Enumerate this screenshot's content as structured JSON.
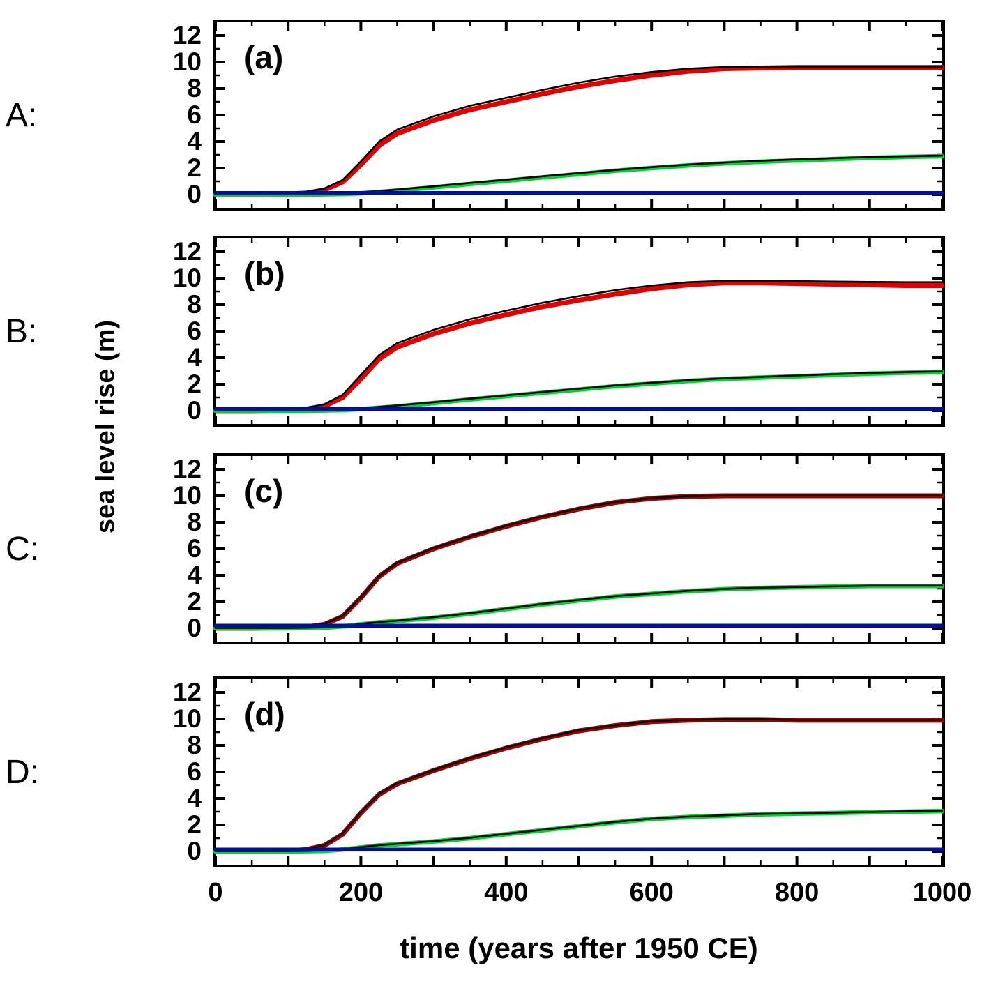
{
  "chart_data": {
    "type": "line",
    "xlabel": "time (years after 1950 CE)",
    "ylabel": "sea level rise (m)",
    "xlim": [
      0,
      1000
    ],
    "ylim": [
      -1,
      13
    ],
    "xticks_labeled": [
      "0",
      "200",
      "400",
      "600",
      "800",
      "1000"
    ],
    "xtick_values": [
      0,
      200,
      400,
      600,
      800,
      1000
    ],
    "xticks_major_step": 100,
    "xticks_minor_step": 50,
    "yticks_labeled": [
      "0",
      "2",
      "4",
      "6",
      "8",
      "10",
      "12"
    ],
    "ytick_values": [
      0,
      2,
      4,
      6,
      8,
      10,
      12
    ],
    "yticks_minor_step": 1,
    "grid": false,
    "legend": "none",
    "x": [
      0,
      50,
      100,
      125,
      150,
      175,
      200,
      225,
      250,
      300,
      350,
      400,
      450,
      500,
      550,
      600,
      650,
      700,
      750,
      800,
      850,
      900,
      950,
      1000
    ],
    "panels": [
      {
        "id": "a",
        "row_label": "A:",
        "label": "(a)",
        "series": [
          {
            "name": "total-red-curve",
            "color": "#e00000",
            "width": 7,
            "y": [
              0,
              0,
              0.05,
              0.12,
              0.35,
              0.95,
              2.25,
              3.7,
              4.6,
              5.6,
              6.4,
              7.0,
              7.6,
              8.15,
              8.6,
              9.0,
              9.3,
              9.5,
              9.55,
              9.6,
              9.6,
              9.6,
              9.6,
              9.6
            ]
          },
          {
            "name": "red-outline-black",
            "color": "#000000",
            "width": 2.6,
            "y": [
              0.05,
              0.05,
              0.1,
              0.2,
              0.45,
              1.1,
              2.5,
              4.0,
              4.9,
              5.9,
              6.7,
              7.3,
              7.9,
              8.45,
              8.9,
              9.25,
              9.5,
              9.63,
              9.65,
              9.65,
              9.65,
              9.65,
              9.65,
              9.65
            ]
          },
          {
            "name": "mid-green-curve",
            "color": "#00d230",
            "width": 6.5,
            "y": [
              0,
              0,
              0,
              0,
              0.02,
              0.05,
              0.1,
              0.2,
              0.3,
              0.55,
              0.8,
              1.05,
              1.3,
              1.55,
              1.8,
              2.0,
              2.2,
              2.35,
              2.48,
              2.58,
              2.68,
              2.77,
              2.84,
              2.9
            ]
          },
          {
            "name": "green-outline-black",
            "color": "#000000",
            "width": 2.6,
            "y": [
              0.02,
              0.02,
              0.02,
              0.03,
              0.05,
              0.1,
              0.17,
              0.27,
              0.38,
              0.62,
              0.88,
              1.12,
              1.38,
              1.62,
              1.86,
              2.07,
              2.26,
              2.41,
              2.55,
              2.65,
              2.75,
              2.83,
              2.89,
              2.94
            ]
          },
          {
            "name": "low-blue-curve",
            "color": "#001099",
            "width": 5.5,
            "y": [
              0.12,
              0.12,
              0.12,
              0.12,
              0.12,
              0.12,
              0.12,
              0.12,
              0.12,
              0.12,
              0.12,
              0.12,
              0.12,
              0.12,
              0.12,
              0.12,
              0.12,
              0.12,
              0.12,
              0.12,
              0.12,
              0.12,
              0.12,
              0.12
            ]
          }
        ]
      },
      {
        "id": "b",
        "row_label": "B:",
        "label": "(b)",
        "series": [
          {
            "name": "total-red-curve",
            "color": "#e00000",
            "width": 7,
            "y": [
              0,
              0,
              0.05,
              0.12,
              0.35,
              1.0,
              2.4,
              3.9,
              4.8,
              5.8,
              6.6,
              7.25,
              7.85,
              8.35,
              8.8,
              9.2,
              9.5,
              9.65,
              9.65,
              9.6,
              9.55,
              9.5,
              9.45,
              9.45
            ]
          },
          {
            "name": "red-outline-black",
            "color": "#000000",
            "width": 2.6,
            "y": [
              0.05,
              0.05,
              0.1,
              0.22,
              0.5,
              1.2,
              2.7,
              4.2,
              5.1,
              6.1,
              6.9,
              7.55,
              8.15,
              8.65,
              9.1,
              9.45,
              9.7,
              9.8,
              9.8,
              9.78,
              9.75,
              9.72,
              9.7,
              9.7
            ]
          },
          {
            "name": "mid-green-curve",
            "color": "#00d230",
            "width": 6.5,
            "y": [
              0,
              0,
              0,
              0,
              0.02,
              0.06,
              0.12,
              0.22,
              0.33,
              0.58,
              0.85,
              1.1,
              1.35,
              1.6,
              1.85,
              2.05,
              2.25,
              2.4,
              2.5,
              2.6,
              2.7,
              2.8,
              2.87,
              2.93
            ]
          },
          {
            "name": "green-outline-black",
            "color": "#000000",
            "width": 2.6,
            "y": [
              0.02,
              0.02,
              0.02,
              0.03,
              0.06,
              0.11,
              0.18,
              0.29,
              0.4,
              0.64,
              0.91,
              1.16,
              1.41,
              1.66,
              1.91,
              2.11,
              2.3,
              2.45,
              2.56,
              2.66,
              2.76,
              2.85,
              2.92,
              2.97
            ]
          },
          {
            "name": "low-blue-curve",
            "color": "#001099",
            "width": 5.5,
            "y": [
              0.12,
              0.12,
              0.12,
              0.12,
              0.12,
              0.12,
              0.12,
              0.12,
              0.12,
              0.12,
              0.12,
              0.12,
              0.12,
              0.12,
              0.12,
              0.12,
              0.12,
              0.12,
              0.12,
              0.12,
              0.12,
              0.12,
              0.12,
              0.12
            ]
          }
        ]
      },
      {
        "id": "c",
        "row_label": "C:",
        "label": "(c)",
        "series": [
          {
            "name": "total-red-curve",
            "color": "#a00000",
            "width": 7,
            "y": [
              0,
              0,
              0.05,
              0.1,
              0.3,
              0.9,
              2.3,
              3.9,
              4.9,
              6.0,
              6.9,
              7.7,
              8.4,
              9.0,
              9.5,
              9.8,
              9.95,
              10.0,
              10.0,
              10.0,
              10.0,
              10.0,
              10.0,
              10.0
            ]
          },
          {
            "name": "red-outline-black",
            "color": "#000000",
            "width": 2.6,
            "y": [
              0.03,
              0.03,
              0.08,
              0.15,
              0.35,
              0.95,
              2.35,
              3.95,
              4.95,
              6.05,
              6.95,
              7.75,
              8.45,
              9.05,
              9.53,
              9.83,
              9.97,
              10.02,
              10.02,
              10.02,
              10.02,
              10.02,
              10.02,
              10.02
            ]
          },
          {
            "name": "mid-green-curve",
            "color": "#00d230",
            "width": 6.5,
            "y": [
              0,
              0,
              0,
              0.02,
              0.05,
              0.15,
              0.3,
              0.45,
              0.55,
              0.8,
              1.1,
              1.45,
              1.8,
              2.1,
              2.4,
              2.6,
              2.8,
              2.95,
              3.05,
              3.1,
              3.15,
              3.2,
              3.2,
              3.2
            ]
          },
          {
            "name": "green-outline-black",
            "color": "#000000",
            "width": 2.6,
            "y": [
              0.02,
              0.02,
              0.02,
              0.04,
              0.08,
              0.18,
              0.33,
              0.48,
              0.58,
              0.84,
              1.14,
              1.49,
              1.84,
              2.14,
              2.43,
              2.63,
              2.83,
              2.98,
              3.07,
              3.12,
              3.17,
              3.22,
              3.22,
              3.22
            ]
          },
          {
            "name": "low-blue-curve",
            "color": "#001099",
            "width": 5.5,
            "y": [
              0.2,
              0.2,
              0.2,
              0.2,
              0.2,
              0.2,
              0.2,
              0.2,
              0.2,
              0.2,
              0.2,
              0.2,
              0.2,
              0.2,
              0.2,
              0.2,
              0.2,
              0.2,
              0.2,
              0.2,
              0.2,
              0.2,
              0.2,
              0.2
            ]
          }
        ]
      },
      {
        "id": "d",
        "row_label": "D:",
        "label": "(d)",
        "series": [
          {
            "name": "total-red-curve",
            "color": "#a00000",
            "width": 7,
            "y": [
              0,
              0,
              0.05,
              0.15,
              0.45,
              1.3,
              2.9,
              4.3,
              5.1,
              6.1,
              7.0,
              7.8,
              8.5,
              9.1,
              9.5,
              9.8,
              9.9,
              9.95,
              9.95,
              9.9,
              9.9,
              9.9,
              9.9,
              9.9
            ]
          },
          {
            "name": "red-outline-black",
            "color": "#000000",
            "width": 2.6,
            "y": [
              0.03,
              0.03,
              0.08,
              0.18,
              0.5,
              1.35,
              2.95,
              4.35,
              5.15,
              6.15,
              7.05,
              7.85,
              8.55,
              9.15,
              9.53,
              9.83,
              9.93,
              9.98,
              9.98,
              9.93,
              9.93,
              9.93,
              9.93,
              9.93
            ]
          },
          {
            "name": "mid-green-curve",
            "color": "#00d230",
            "width": 6.5,
            "y": [
              0,
              0,
              0,
              0.02,
              0.05,
              0.15,
              0.3,
              0.45,
              0.55,
              0.75,
              1.0,
              1.3,
              1.6,
              1.9,
              2.2,
              2.45,
              2.6,
              2.7,
              2.8,
              2.85,
              2.9,
              2.95,
              3.0,
              3.05
            ]
          },
          {
            "name": "green-outline-black",
            "color": "#000000",
            "width": 2.6,
            "y": [
              0.02,
              0.02,
              0.02,
              0.04,
              0.08,
              0.18,
              0.33,
              0.48,
              0.58,
              0.78,
              1.03,
              1.33,
              1.63,
              1.93,
              2.23,
              2.48,
              2.63,
              2.73,
              2.83,
              2.88,
              2.93,
              2.98,
              3.03,
              3.08
            ]
          },
          {
            "name": "low-blue-curve",
            "color": "#001099",
            "width": 5.5,
            "y": [
              0.15,
              0.15,
              0.15,
              0.15,
              0.15,
              0.15,
              0.15,
              0.15,
              0.15,
              0.15,
              0.15,
              0.15,
              0.15,
              0.15,
              0.15,
              0.15,
              0.15,
              0.15,
              0.15,
              0.15,
              0.15,
              0.15,
              0.15,
              0.15
            ]
          }
        ]
      }
    ]
  }
}
